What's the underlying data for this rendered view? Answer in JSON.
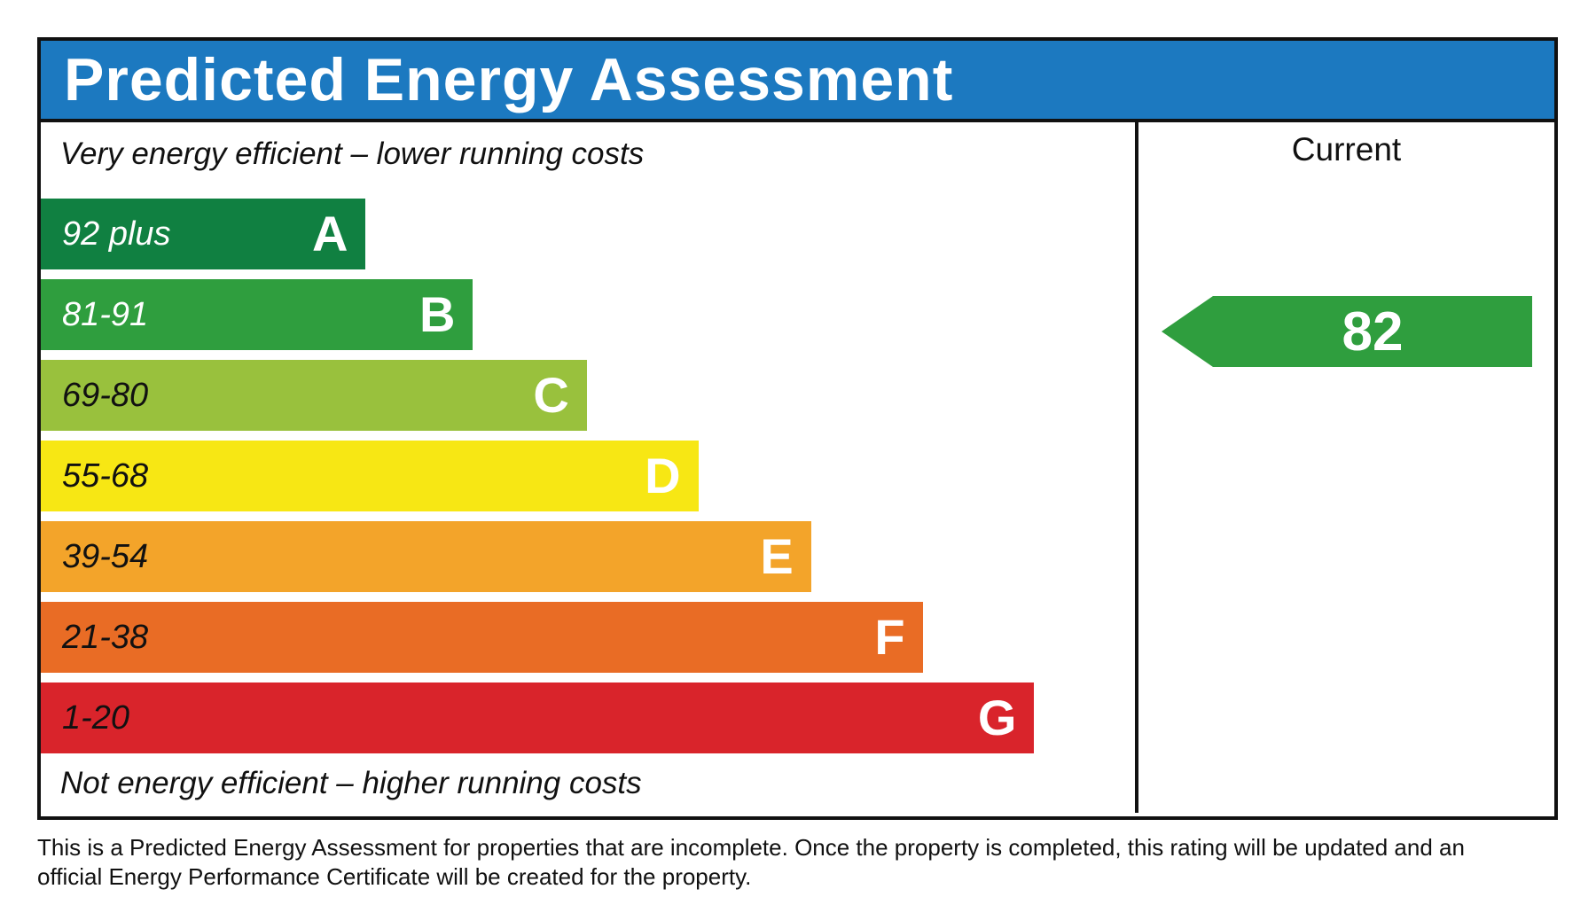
{
  "title": "Predicted Energy Assessment",
  "colors": {
    "header_bg": "#1c79c0",
    "border": "#111111",
    "arrow_green": "#2f9e3e"
  },
  "notes": {
    "top": "Very energy efficient – lower running costs",
    "bottom": "Not energy efficient – higher running costs"
  },
  "current_column": {
    "header": "Current",
    "value": "82"
  },
  "footer": {
    "line1": "This is a Predicted Energy Assessment for properties that are incomplete. Once the property is completed, this rating will be updated and an",
    "line2": "official Energy Performance Certificate will be created for the property."
  },
  "chart_data": {
    "type": "bar",
    "title": "Predicted Energy Assessment",
    "categories": [
      "A",
      "B",
      "C",
      "D",
      "E",
      "F",
      "G"
    ],
    "bands": [
      {
        "letter": "A",
        "range": "92 plus",
        "color": "#108041",
        "range_text_color": "#ffffff",
        "width_pct": 29.7
      },
      {
        "letter": "B",
        "range": "81-91",
        "color": "#2f9e3e",
        "range_text_color": "#ffffff",
        "width_pct": 39.5
      },
      {
        "letter": "C",
        "range": "69-80",
        "color": "#99c13d",
        "range_text_color": "#111111",
        "width_pct": 49.9
      },
      {
        "letter": "D",
        "range": "55-68",
        "color": "#f7e714",
        "range_text_color": "#111111",
        "width_pct": 60.1
      },
      {
        "letter": "E",
        "range": "39-54",
        "color": "#f3a42a",
        "range_text_color": "#111111",
        "width_pct": 70.4
      },
      {
        "letter": "F",
        "range": "21-38",
        "color": "#e96c25",
        "range_text_color": "#111111",
        "width_pct": 80.6
      },
      {
        "letter": "G",
        "range": "1-20",
        "color": "#d9242b",
        "range_text_color": "#111111",
        "width_pct": 90.8
      }
    ],
    "current": {
      "value": 82,
      "band": "B",
      "arrow_color": "#2f9e3e",
      "legend_position": "right-column"
    },
    "xlabel": "",
    "ylabel": "",
    "grid": false
  }
}
